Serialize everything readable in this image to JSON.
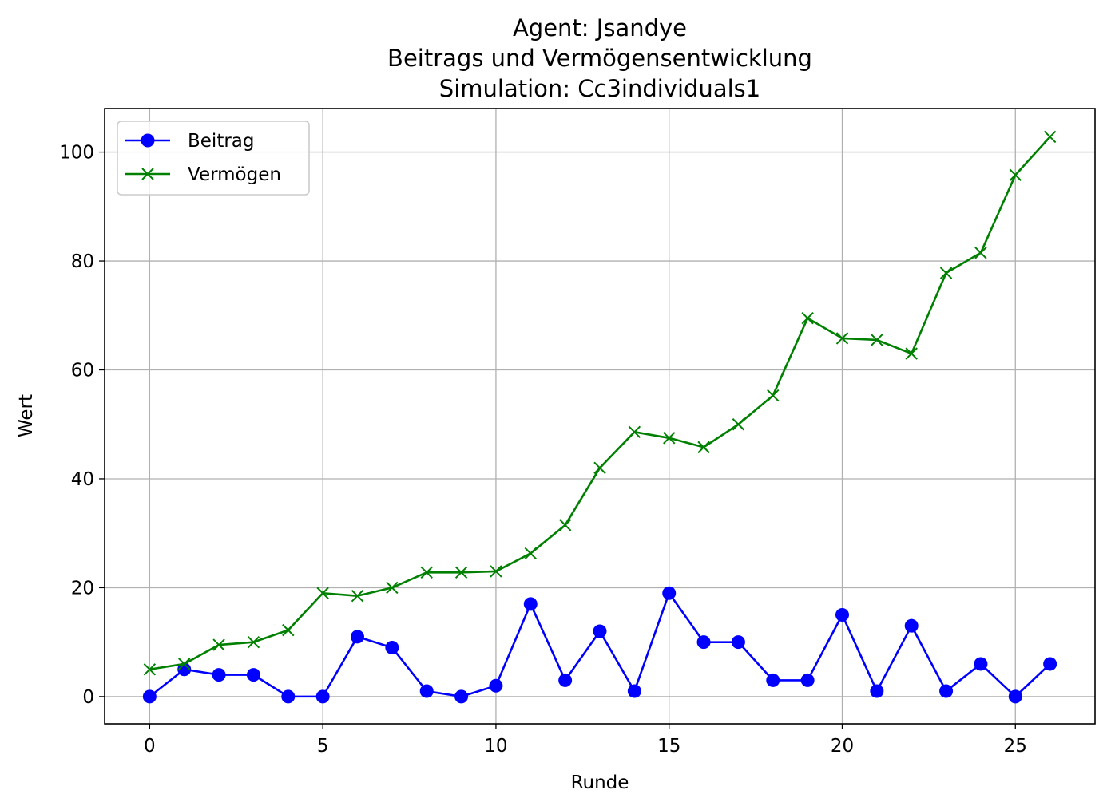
{
  "chart_data": {
    "type": "line",
    "title_lines": [
      "Agent: Jsandye",
      "Beitrags und Vermögensentwicklung",
      "Simulation: Cc3individuals1"
    ],
    "xlabel": "Runde",
    "ylabel": "Wert",
    "xlim": [
      -1.3,
      27.3
    ],
    "ylim": [
      -5,
      108
    ],
    "xticks": [
      0,
      5,
      10,
      15,
      20,
      25
    ],
    "yticks": [
      0,
      20,
      40,
      60,
      80,
      100
    ],
    "grid": true,
    "legend_position": "top-left",
    "x": [
      0,
      1,
      2,
      3,
      4,
      5,
      6,
      7,
      8,
      9,
      10,
      11,
      12,
      13,
      14,
      15,
      16,
      17,
      18,
      19,
      20,
      21,
      22,
      23,
      24,
      25,
      26
    ],
    "series": [
      {
        "name": "Beitrag",
        "color": "#0000ff",
        "marker": "circle",
        "values": [
          0,
          5,
          4,
          4,
          0,
          0,
          11,
          9,
          1,
          0,
          2,
          17,
          3,
          12,
          1,
          19,
          10,
          10,
          3,
          3,
          15,
          1,
          13,
          1,
          6,
          0,
          6
        ]
      },
      {
        "name": "Vermögen",
        "color": "#008000",
        "marker": "x",
        "values": [
          5,
          6,
          9.5,
          10,
          12.2,
          19,
          18.5,
          20,
          22.8,
          22.8,
          23,
          26.3,
          31.5,
          42,
          48.6,
          47.5,
          45.8,
          50,
          55.3,
          69.5,
          65.8,
          65.5,
          63,
          77.8,
          81.5,
          95.8,
          102.8
        ]
      }
    ]
  }
}
